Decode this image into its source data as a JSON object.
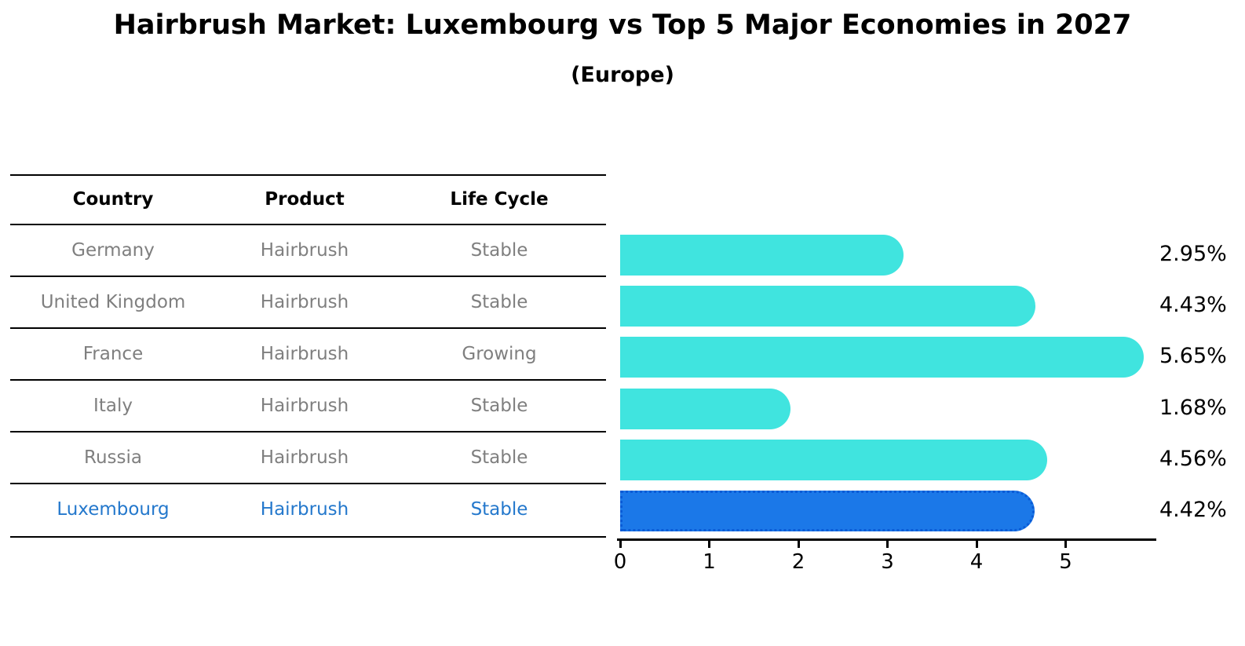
{
  "title": "Hairbrush Market: Luxembourg vs Top 5 Major Economies in 2027",
  "subtitle": "(Europe)",
  "table": {
    "headers": [
      "Country",
      "Product",
      "Life Cycle"
    ],
    "rows": [
      {
        "country": "Germany",
        "product": "Hairbrush",
        "life_cycle": "Stable",
        "highlight": false
      },
      {
        "country": "United Kingdom",
        "product": "Hairbrush",
        "life_cycle": "Stable",
        "highlight": false
      },
      {
        "country": "France",
        "product": "Hairbrush",
        "life_cycle": "Growing",
        "highlight": false
      },
      {
        "country": "Italy",
        "product": "Hairbrush",
        "life_cycle": "Stable",
        "highlight": false
      },
      {
        "country": "Russia",
        "product": "Hairbrush",
        "life_cycle": "Stable",
        "highlight": false
      },
      {
        "country": "Luxembourg",
        "product": "Hairbrush",
        "life_cycle": "Stable",
        "highlight": true
      }
    ]
  },
  "chart_data": {
    "type": "bar",
    "orientation": "horizontal",
    "title": "Hairbrush Market: Luxembourg vs Top 5 Major Economies in 2027",
    "subtitle": "(Europe)",
    "categories": [
      "Germany",
      "United Kingdom",
      "France",
      "Italy",
      "Russia",
      "Luxembourg"
    ],
    "values": [
      2.95,
      4.43,
      5.65,
      1.68,
      4.56,
      4.42
    ],
    "value_labels": [
      "2.95%",
      "4.43%",
      "5.65%",
      "1.68%",
      "4.56%",
      "4.42%"
    ],
    "x_ticks": [
      "0",
      "1",
      "2",
      "3",
      "4",
      "5"
    ],
    "xlim": [
      0,
      5.95
    ],
    "grid": false,
    "legend": false,
    "highlight_index": 5,
    "highlight_category": "Luxembourg"
  },
  "colors": {
    "bar_default": "#40e4df",
    "bar_highlight": "#1b78e8",
    "bar_highlight_edge": "#0a5bd6",
    "highlight_text": "#2478cc",
    "row_text": "#7f7f7f",
    "axis": "#000000"
  }
}
